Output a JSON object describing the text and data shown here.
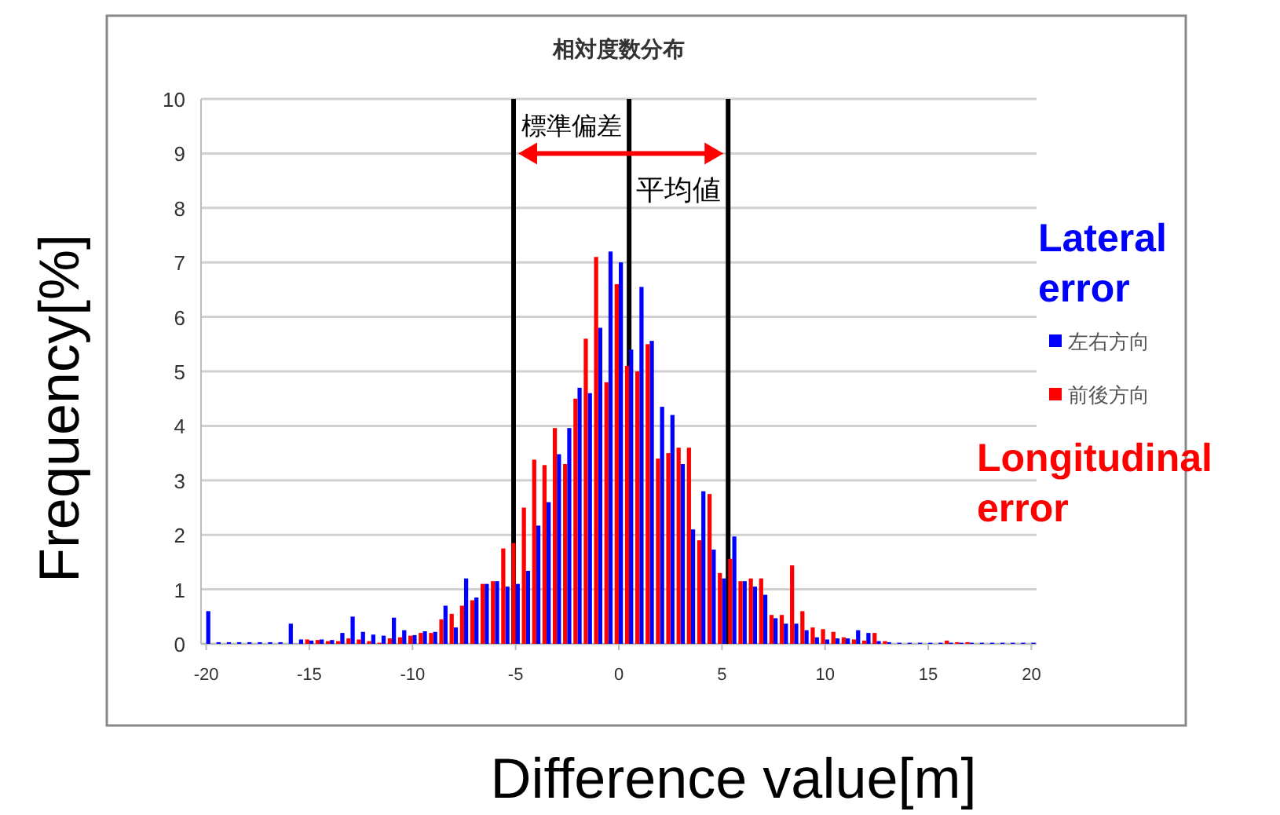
{
  "chart_data": {
    "type": "bar",
    "title": "相対度数分布",
    "xlabel": "Difference value[m]",
    "ylabel": "Frequency[%]",
    "x": [
      -20,
      -19.5,
      -19,
      -18.5,
      -18,
      -17.5,
      -17,
      -16.5,
      -16,
      -15.5,
      -15,
      -14.5,
      -14,
      -13.5,
      -13,
      -12.5,
      -12,
      -11.5,
      -11,
      -10.5,
      -10,
      -9.5,
      -9,
      -8.5,
      -8,
      -7.5,
      -7,
      -6.5,
      -6,
      -5.5,
      -5,
      -4.5,
      -4,
      -3.5,
      -3,
      -2.5,
      -2,
      -1.5,
      -1,
      -0.5,
      0,
      0.5,
      1,
      1.5,
      2,
      2.5,
      3,
      3.5,
      4,
      4.5,
      5,
      5.5,
      6,
      6.5,
      7,
      7.5,
      8,
      8.5,
      9,
      9.5,
      10,
      10.5,
      11,
      11.5,
      12,
      12.5,
      13,
      13.5,
      14,
      14.5,
      15,
      15.5,
      16,
      16.5,
      17,
      17.5,
      18,
      18.5,
      19,
      19.5,
      20
    ],
    "series": [
      {
        "name": "左右方向",
        "color": "#0000ff",
        "values": [
          0.6,
          0.03,
          0.03,
          0.03,
          0.03,
          0.03,
          0.03,
          0.03,
          0.37,
          0.08,
          0.06,
          0.08,
          0.07,
          0.2,
          0.5,
          0.22,
          0.17,
          0.15,
          0.48,
          0.25,
          0.16,
          0.23,
          0.22,
          0.7,
          0.3,
          1.2,
          0.85,
          1.1,
          1.15,
          1.05,
          1.1,
          1.34,
          2.17,
          2.6,
          3.48,
          3.96,
          4.7,
          4.6,
          5.8,
          7.2,
          7.0,
          5.4,
          6.55,
          5.56,
          4.35,
          4.2,
          3.3,
          2.1,
          2.8,
          1.73,
          1.2,
          1.97,
          1.15,
          1.05,
          0.9,
          0.47,
          0.37,
          0.37,
          0.25,
          0.12,
          0.08,
          0.1,
          0.1,
          0.25,
          0.2,
          0.05,
          0.03,
          0.02,
          0.02,
          0.02,
          0.02,
          0.02,
          0.02,
          0.02,
          0.02,
          0.02,
          0.02,
          0.02,
          0.02,
          0.02,
          0.02
        ]
      },
      {
        "name": "前後方向",
        "color": "#ff0000",
        "values": [
          0,
          0,
          0,
          0,
          0,
          0,
          0,
          0,
          0,
          0,
          0.08,
          0.07,
          0.05,
          0.05,
          0.1,
          0.08,
          0.05,
          0.02,
          0.1,
          0.12,
          0.15,
          0.2,
          0.2,
          0.45,
          0.55,
          0.7,
          0.8,
          1.1,
          1.15,
          1.75,
          1.85,
          2.5,
          3.38,
          3.28,
          3.96,
          3.3,
          4.5,
          5.6,
          7.1,
          4.8,
          6.6,
          5.1,
          5.0,
          5.5,
          3.4,
          3.5,
          3.6,
          3.6,
          1.9,
          2.75,
          1.3,
          1.56,
          1.15,
          1.2,
          1.2,
          0.53,
          0.53,
          1.44,
          0.6,
          0.3,
          0.27,
          0.22,
          0.12,
          0.08,
          0.06,
          0.2,
          0.05,
          0,
          0,
          0,
          0,
          0,
          0.06,
          0.03,
          0.03,
          0,
          0,
          0,
          0,
          0,
          0
        ]
      }
    ],
    "xlim": [
      -20.25,
      20.25
    ],
    "xticks": [
      -20,
      -15,
      -10,
      -5,
      0,
      5,
      10,
      15,
      20
    ],
    "ylim": [
      0,
      10
    ],
    "yticks": [
      0,
      1,
      2,
      3,
      4,
      5,
      6,
      7,
      8,
      9,
      10
    ],
    "grid": "y",
    "legend": "right",
    "ref_lines": [
      {
        "axis": "x",
        "value": -5.1,
        "color": "#000000"
      },
      {
        "axis": "x",
        "value": 0.5,
        "label": "平均値",
        "color": "#000000"
      },
      {
        "axis": "x",
        "value": 5.3,
        "color": "#000000"
      }
    ],
    "annotations": [
      "標準偏差",
      "Lateral error",
      "Longitudinal error"
    ]
  }
}
